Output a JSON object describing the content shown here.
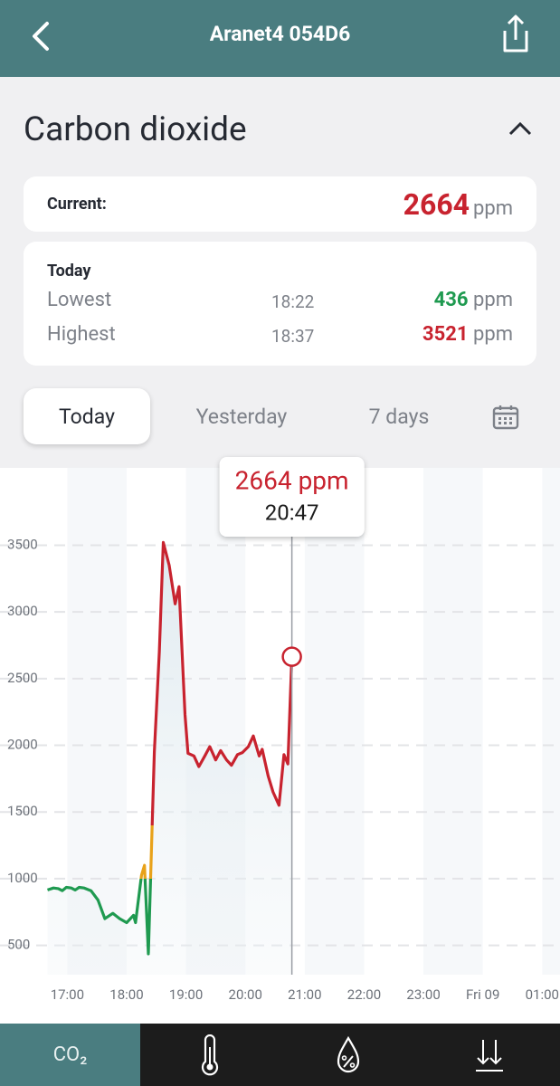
{
  "header": {
    "title": "Aranet4 054D6"
  },
  "section_title": "Carbon dioxide",
  "current": {
    "label": "Current:",
    "value": 2664,
    "unit": "ppm"
  },
  "today": {
    "title": "Today",
    "rows": [
      {
        "label": "Lowest",
        "time": "18:22",
        "value": 436,
        "unit": "ppm"
      },
      {
        "label": "Highest",
        "time": "18:37",
        "value": 3521,
        "unit": "ppm"
      }
    ]
  },
  "tabs": [
    "Today",
    "Yesterday",
    "7 days"
  ],
  "bottom_nav": [
    "CO₂"
  ],
  "chart_data": {
    "type": "line",
    "x": [
      "16:40",
      "16:46",
      "16:51",
      "16:55",
      "16:59",
      "17:04",
      "17:08",
      "17:12",
      "17:17",
      "17:24",
      "17:31",
      "17:38",
      "17:46",
      "17:53",
      "18:00",
      "18:07",
      "18:09",
      "18:15",
      "18:18",
      "18:22",
      "18:28",
      "18:33",
      "18:37",
      "18:43",
      "18:49",
      "18:53",
      "18:59",
      "19:02",
      "19:08",
      "19:13",
      "19:19",
      "19:24",
      "19:30",
      "19:35",
      "19:41",
      "19:46",
      "19:52",
      "19:57",
      "20:03",
      "20:08",
      "20:14",
      "20:17",
      "20:23",
      "20:28",
      "20:34",
      "20:39",
      "20:43",
      "20:47"
    ],
    "values": [
      915,
      930,
      925,
      910,
      935,
      930,
      915,
      935,
      930,
      910,
      840,
      700,
      740,
      700,
      670,
      725,
      670,
      1025,
      1100,
      436,
      1950,
      2700,
      3521,
      3350,
      3060,
      3190,
      2230,
      1940,
      1920,
      1840,
      1920,
      1990,
      1890,
      1960,
      1890,
      1850,
      1930,
      1945,
      1990,
      2070,
      1920,
      1970,
      1770,
      1650,
      1550,
      1930,
      1860,
      2664
    ],
    "xlim": [
      "15:52",
      "25:18"
    ],
    "xticks": [
      "17:00",
      "18:00",
      "19:00",
      "20:00",
      "21:00",
      "22:00",
      "23:00",
      {
        "value": "24:00",
        "label": "Fri 09"
      },
      {
        "value": "25:00",
        "label": "01:00"
      }
    ],
    "ylim": [
      280,
      4080
    ],
    "yticks": [
      500,
      1000,
      1500,
      2000,
      2500,
      3000,
      3500
    ],
    "grid": true,
    "color_levels": [
      {
        "max": 1000,
        "color": "#1f9a50"
      },
      {
        "max": 1400,
        "color": "#e8a21a"
      },
      {
        "color": "#c8232f"
      }
    ],
    "tooltip": {
      "value_label": "2664 ppm",
      "time": "20:47"
    }
  }
}
